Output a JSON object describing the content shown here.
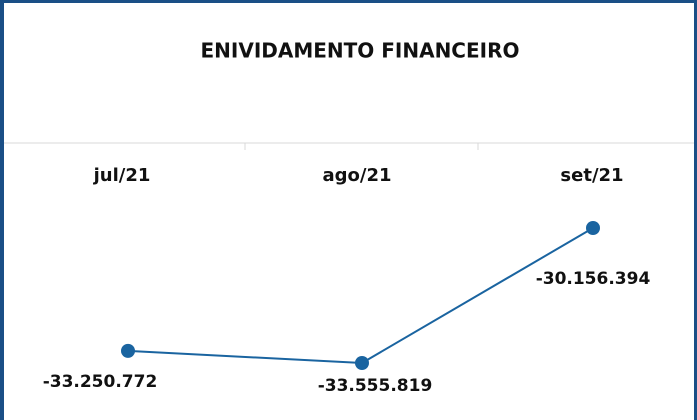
{
  "chart_data": {
    "type": "line",
    "title": "ENIVIDAMENTO FINANCEIRO",
    "categories": [
      "jul/21",
      "ago/21",
      "set/21"
    ],
    "values": [
      -33250772,
      -33555819,
      -30156394
    ],
    "value_labels": [
      "-33.250.772",
      "-33.555.819",
      "-30.156.394"
    ],
    "color": "#1a64a0"
  }
}
